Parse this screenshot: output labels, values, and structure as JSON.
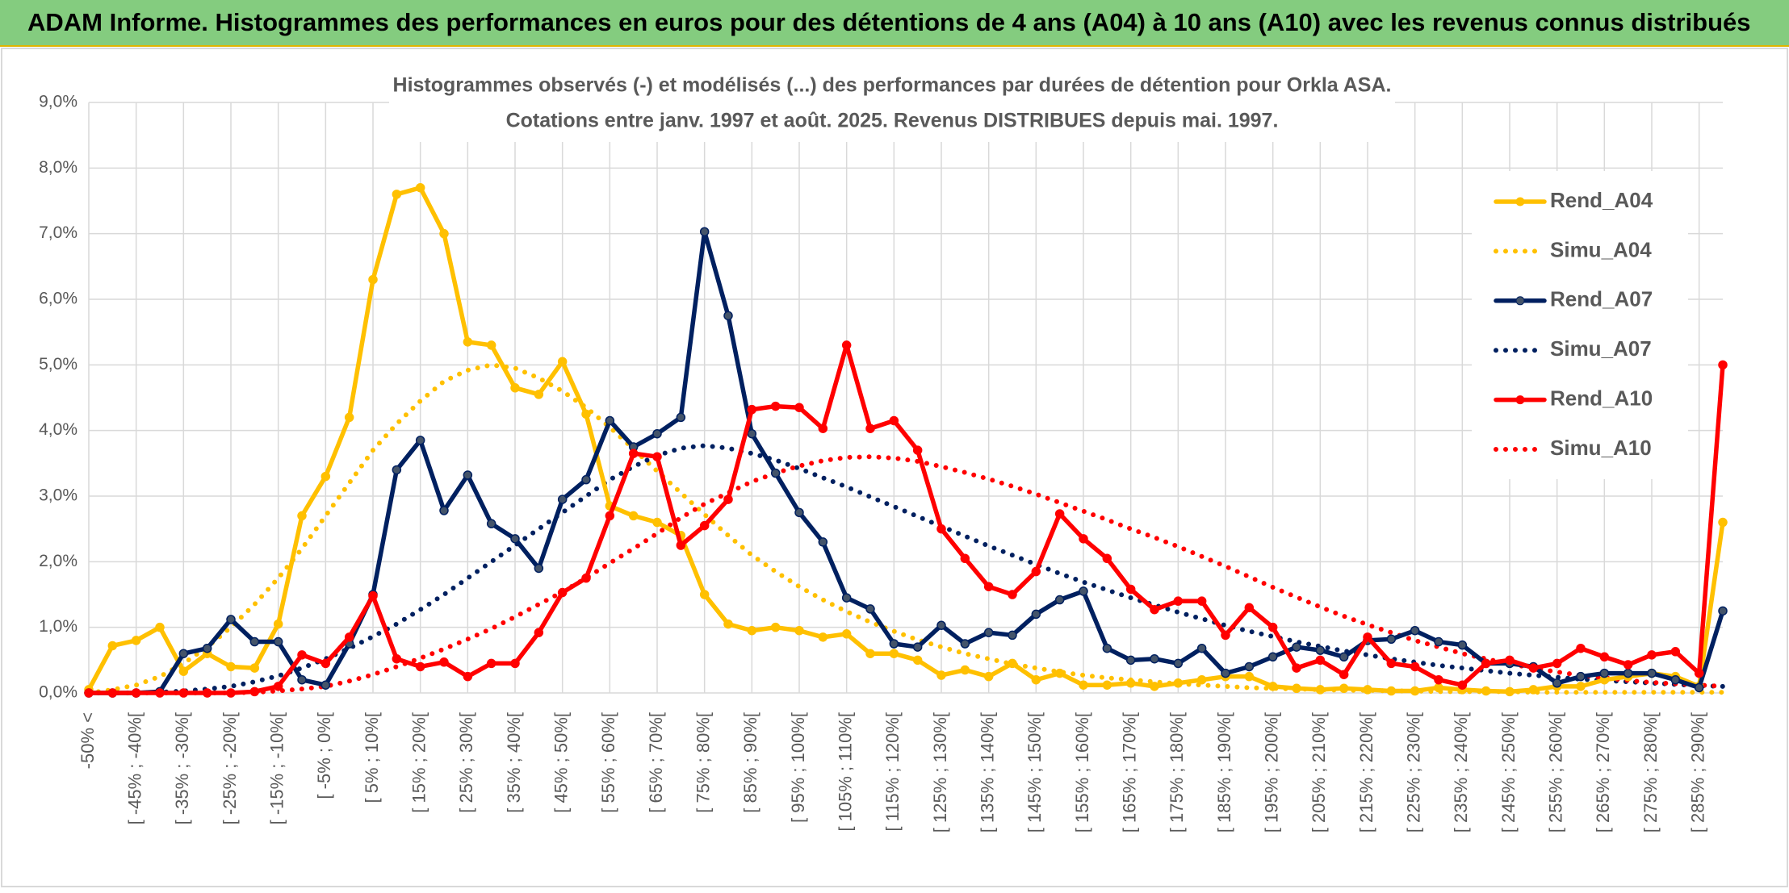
{
  "header": {
    "title": "ADAM Informe. Histogrammes des performances en euros pour des détentions de 4 ans (A04) à 10 ans (A10) avec les revenus connus distribués"
  },
  "chart_data": {
    "type": "line",
    "title": [
      "Histogrammes observés (-) et modélisés (...) des performances par durées de détention pour Orkla ASA.",
      "Cotations entre janv. 1997 et août. 2025. Revenus DISTRIBUES depuis mai. 1997."
    ],
    "categories": [
      "-50% <",
      null,
      "[ -45% ; -40%[",
      null,
      "[ -35% ; -30%[",
      null,
      "[ -25% ; -20%[",
      null,
      "[ -15% ; -10%[",
      null,
      "[ -5% ; 0%[",
      null,
      "[ 5% ; 10%[",
      null,
      "[ 15% ; 20%[",
      null,
      "[ 25% ; 30%[",
      null,
      "[ 35% ; 40%[",
      null,
      "[ 45% ; 50%[",
      null,
      "[ 55% ; 60%[",
      null,
      "[ 65% ; 70%[",
      null,
      "[ 75% ; 80%[",
      null,
      "[ 85% ; 90%[",
      null,
      "[ 95% ; 100%[",
      null,
      "[ 105% ; 110%[",
      null,
      "[ 115% ; 120%[",
      null,
      "[ 125% ; 130%[",
      null,
      "[ 135% ; 140%[",
      null,
      "[ 145% ; 150%[",
      null,
      "[ 155% ; 160%[",
      null,
      "[ 165% ; 170%[",
      null,
      "[ 175% ; 180%[",
      null,
      "[ 185% ; 190%[",
      null,
      "[ 195% ; 200%[",
      null,
      "[ 205% ; 210%[",
      null,
      "[ 215% ; 220%[",
      null,
      "[ 225% ; 230%[",
      null,
      "[ 235% ; 240%[",
      null,
      "[ 245% ; 250%[",
      null,
      "[ 255% ; 260%[",
      null,
      "[ 265% ; 270%[",
      null,
      "[ 275% ; 280%[",
      null,
      "[ 285% ; 290%[",
      null
    ],
    "series": [
      {
        "name": "Rend_A04",
        "color": "#ffc000",
        "line_style": "solid",
        "markers": true,
        "values": [
          0.05,
          0.72,
          0.8,
          1.0,
          0.33,
          0.6,
          0.4,
          0.38,
          1.05,
          2.7,
          3.3,
          4.2,
          6.3,
          7.6,
          7.7,
          7.0,
          5.35,
          5.3,
          4.65,
          4.55,
          5.05,
          4.25,
          2.85,
          2.7,
          2.6,
          2.4,
          1.5,
          1.05,
          0.95,
          1.0,
          0.95,
          0.85,
          0.9,
          0.6,
          0.6,
          0.5,
          0.27,
          0.35,
          0.25,
          0.45,
          0.2,
          0.3,
          0.12,
          0.12,
          0.15,
          0.1,
          0.15,
          0.2,
          0.25,
          0.25,
          0.1,
          0.07,
          0.05,
          0.07,
          0.05,
          0.03,
          0.03,
          0.08,
          0.05,
          0.03,
          0.02,
          0.05,
          0.1,
          0.1,
          0.2,
          0.25,
          0.3,
          0.25,
          0.1,
          2.6
        ]
      },
      {
        "name": "Simu_A04",
        "color": "#ffc000",
        "line_style": "dotted",
        "markers": false,
        "values": [
          0,
          0.05,
          0.12,
          0.25,
          0.45,
          0.7,
          1.0,
          1.35,
          1.75,
          2.2,
          2.7,
          3.2,
          3.7,
          4.1,
          4.45,
          4.75,
          4.92,
          5.0,
          4.95,
          4.8,
          4.6,
          4.35,
          4.05,
          3.72,
          3.38,
          3.05,
          2.72,
          2.4,
          2.1,
          1.85,
          1.62,
          1.42,
          1.24,
          1.08,
          0.94,
          0.81,
          0.7,
          0.6,
          0.52,
          0.44,
          0.38,
          0.32,
          0.27,
          0.23,
          0.2,
          0.17,
          0.14,
          0.12,
          0.1,
          0.08,
          0.07,
          0.06,
          0.05,
          0.04,
          0.04,
          0.03,
          0.03,
          0.02,
          0.02,
          0.02,
          0.02,
          0.01,
          0.01,
          0.01,
          0.01,
          0.01,
          0.01,
          0.01,
          0.01,
          0.01
        ]
      },
      {
        "name": "Rend_A07",
        "color": "#002060",
        "line_style": "solid",
        "markers": true,
        "values": [
          0,
          0,
          0,
          0.02,
          0.6,
          0.68,
          1.12,
          0.78,
          0.78,
          0.2,
          0.12,
          0.75,
          1.5,
          3.4,
          3.85,
          2.78,
          3.32,
          2.58,
          2.35,
          1.9,
          2.95,
          3.25,
          4.15,
          3.75,
          3.95,
          4.2,
          7.03,
          5.75,
          3.95,
          3.35,
          2.75,
          2.3,
          1.45,
          1.28,
          0.75,
          0.7,
          1.03,
          0.75,
          0.92,
          0.88,
          1.2,
          1.42,
          1.55,
          0.68,
          0.5,
          0.52,
          0.45,
          0.68,
          0.3,
          0.4,
          0.55,
          0.7,
          0.65,
          0.55,
          0.8,
          0.82,
          0.95,
          0.78,
          0.73,
          0.45,
          0.45,
          0.4,
          0.15,
          0.25,
          0.3,
          0.3,
          0.3,
          0.2,
          0.08,
          1.25
        ]
      },
      {
        "name": "Simu_A07",
        "color": "#002060",
        "line_style": "dotted",
        "markers": false,
        "values": [
          0,
          0,
          0,
          0.01,
          0.03,
          0.06,
          0.1,
          0.17,
          0.26,
          0.38,
          0.52,
          0.68,
          0.86,
          1.05,
          1.27,
          1.5,
          1.75,
          2.0,
          2.25,
          2.5,
          2.75,
          3.0,
          3.25,
          3.45,
          3.62,
          3.73,
          3.77,
          3.73,
          3.65,
          3.55,
          3.42,
          3.28,
          3.14,
          2.99,
          2.84,
          2.69,
          2.54,
          2.39,
          2.24,
          2.1,
          1.96,
          1.82,
          1.69,
          1.57,
          1.45,
          1.34,
          1.23,
          1.13,
          1.03,
          0.94,
          0.86,
          0.78,
          0.71,
          0.64,
          0.58,
          0.52,
          0.47,
          0.42,
          0.38,
          0.34,
          0.3,
          0.27,
          0.24,
          0.21,
          0.19,
          0.17,
          0.15,
          0.13,
          0.11,
          0.1
        ]
      },
      {
        "name": "Rend_A10",
        "color": "#ff0000",
        "line_style": "solid",
        "markers": true,
        "values": [
          0,
          0,
          0,
          0,
          0,
          0,
          0,
          0.02,
          0.1,
          0.58,
          0.45,
          0.85,
          1.48,
          0.52,
          0.4,
          0.47,
          0.25,
          0.45,
          0.45,
          0.92,
          1.53,
          1.75,
          2.7,
          3.65,
          3.6,
          2.25,
          2.55,
          2.95,
          4.32,
          4.37,
          4.35,
          4.03,
          5.3,
          4.03,
          4.15,
          3.7,
          2.5,
          2.05,
          1.62,
          1.5,
          1.85,
          2.73,
          2.35,
          2.05,
          1.58,
          1.27,
          1.4,
          1.4,
          0.88,
          1.3,
          1.0,
          0.38,
          0.5,
          0.28,
          0.85,
          0.45,
          0.4,
          0.2,
          0.12,
          0.45,
          0.5,
          0.38,
          0.45,
          0.68,
          0.55,
          0.43,
          0.58,
          0.63,
          0.3,
          5.0
        ]
      },
      {
        "name": "Simu_A10",
        "color": "#ff0000",
        "line_style": "dotted",
        "markers": false,
        "values": [
          0,
          0,
          0,
          0,
          0,
          0,
          0,
          0.01,
          0.03,
          0.06,
          0.1,
          0.18,
          0.28,
          0.4,
          0.53,
          0.67,
          0.82,
          0.98,
          1.16,
          1.35,
          1.54,
          1.75,
          1.98,
          2.2,
          2.43,
          2.67,
          2.88,
          3.05,
          3.22,
          3.35,
          3.46,
          3.54,
          3.59,
          3.6,
          3.58,
          3.53,
          3.45,
          3.36,
          3.26,
          3.15,
          3.03,
          2.9,
          2.77,
          2.64,
          2.5,
          2.37,
          2.23,
          2.08,
          1.93,
          1.77,
          1.61,
          1.46,
          1.31,
          1.17,
          1.04,
          0.92,
          0.8,
          0.7,
          0.6,
          0.52,
          0.44,
          0.38,
          0.32,
          0.27,
          0.23,
          0.19,
          0.16,
          0.14,
          0.12,
          0.1
        ]
      }
    ],
    "ylim": [
      0,
      9
    ],
    "yticks": [
      {
        "value": 0,
        "label": "0,0%"
      },
      {
        "value": 1,
        "label": "1,0%"
      },
      {
        "value": 2,
        "label": "2,0%"
      },
      {
        "value": 3,
        "label": "3,0%"
      },
      {
        "value": 4,
        "label": "4,0%"
      },
      {
        "value": 5,
        "label": "5,0%"
      },
      {
        "value": 6,
        "label": "6,0%"
      },
      {
        "value": 7,
        "label": "7,0%"
      },
      {
        "value": 8,
        "label": "8,0%"
      },
      {
        "value": 9,
        "label": "9,0%"
      }
    ],
    "grid": true,
    "legend": "right"
  }
}
